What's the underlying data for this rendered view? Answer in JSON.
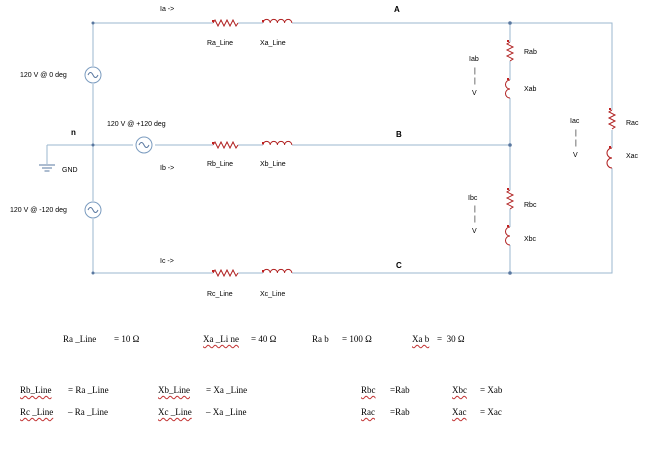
{
  "currents": {
    "ia": "Ia ->",
    "ib": "Ib ->",
    "ic": "Ic ->"
  },
  "nodes": {
    "a": "A",
    "b": "B",
    "c": "C",
    "n": "n",
    "gnd": "GND"
  },
  "sources": {
    "a": "120 V @ 0 deg",
    "b": "120 V @ +120 deg",
    "c": "120 V @ -120 deg"
  },
  "line_components": {
    "ra": "Ra_Line",
    "xa": "Xa_Line",
    "rb": "Rb_Line",
    "xb": "Xb_Line",
    "rc": "Rc_Line",
    "xc": "Xc_Line"
  },
  "load_components": {
    "rab": "Rab",
    "xab": "Xab",
    "rbc": "Rbc",
    "xbc": "Xbc",
    "rac": "Rac",
    "xac": "Xac"
  },
  "load_currents": {
    "iab": "Iab",
    "ibc": "Ibc",
    "iac": "Iac",
    "arrow_bar": "|",
    "arrow_v": "V"
  },
  "equations": {
    "ra_name": "Ra _Line",
    "ra_val": "= 10 Ω",
    "xa_name": "Xa _Li ne",
    "xa_val": "= 40 Ω",
    "rab_name": "Ra b",
    "rab_val": "= 100 Ω",
    "xab_name": "Xa b",
    "xab_val": "=  30 Ω",
    "rb_name": "Rb_Line",
    "rb_rel": "= Ra _Line",
    "xb_name": "Xb_Line",
    "xb_rel": "= Xa _Line",
    "rbc_name": "Rbc",
    "rbc_rel": "=Rab",
    "xbc_name": "Xbc",
    "xbc_rel": "= Xab",
    "rc_name": "Rc _Line",
    "rc_rel": "– Ra _Line",
    "xc_name": "Xc _Line",
    "xc_rel": "– Xa _Line",
    "rac_name": "Rac",
    "rac_rel": "=Rab",
    "xac_name": "Xac",
    "xac_rel": "= Xac"
  }
}
